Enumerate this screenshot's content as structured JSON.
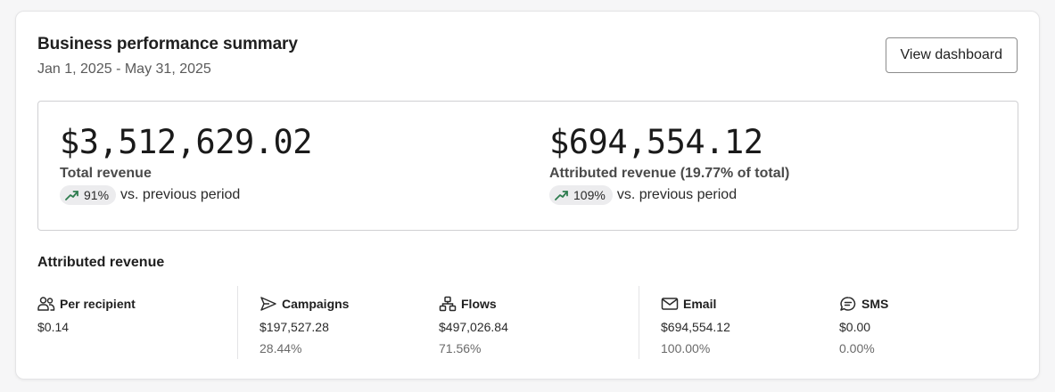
{
  "header": {
    "title": "Business performance summary",
    "date_range": "Jan 1, 2025 - May 31, 2025",
    "view_button_label": "View dashboard"
  },
  "summary": {
    "total": {
      "value": "$3,512,629.02",
      "label": "Total revenue",
      "change": "91%",
      "change_suffix": "vs. previous period",
      "trend_icon": "trend-up-icon"
    },
    "attributed": {
      "value": "$694,554.12",
      "label": "Attributed revenue (19.77% of total)",
      "change": "109%",
      "change_suffix": "vs. previous period",
      "trend_icon": "trend-up-icon"
    }
  },
  "attributed_section": {
    "title": "Attributed revenue",
    "stats": [
      {
        "icon": "people-icon",
        "label": "Per recipient",
        "value": "$0.14",
        "pct": ""
      },
      {
        "icon": "send-icon",
        "label": "Campaigns",
        "value": "$197,527.28",
        "pct": "28.44%"
      },
      {
        "icon": "flows-icon",
        "label": "Flows",
        "value": "$497,026.84",
        "pct": "71.56%"
      },
      {
        "icon": "email-icon",
        "label": "Email",
        "value": "$694,554.12",
        "pct": "100.00%"
      },
      {
        "icon": "sms-icon",
        "label": "SMS",
        "value": "$0.00",
        "pct": "0.00%"
      }
    ]
  },
  "colors": {
    "trend_up": "#2e7d4f",
    "pill_bg": "#ececee",
    "border": "#d0d0d3"
  }
}
